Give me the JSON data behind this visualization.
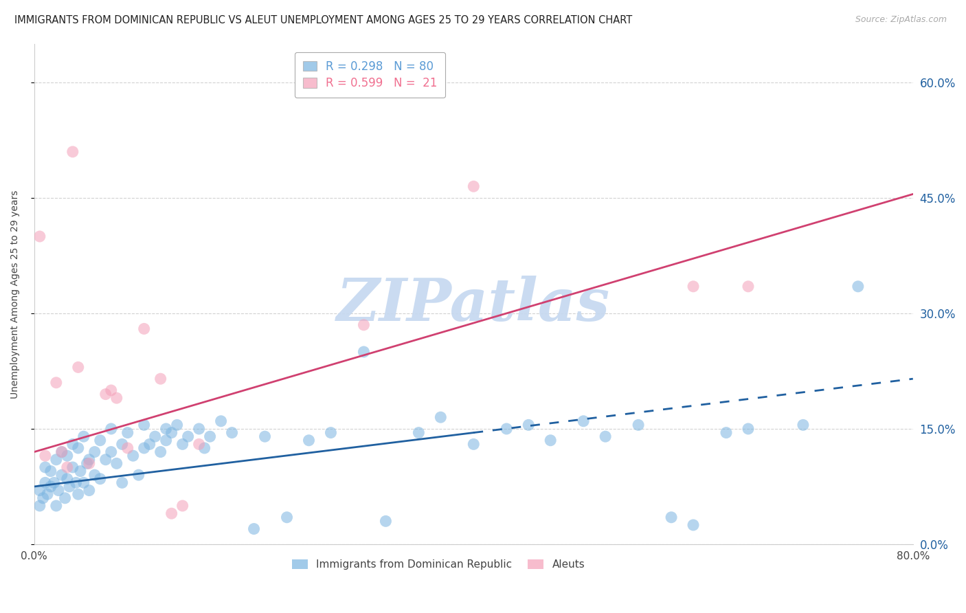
{
  "title": "IMMIGRANTS FROM DOMINICAN REPUBLIC VS ALEUT UNEMPLOYMENT AMONG AGES 25 TO 29 YEARS CORRELATION CHART",
  "source": "Source: ZipAtlas.com",
  "ylabel_label": "Unemployment Among Ages 25 to 29 years",
  "legend_entries": [
    {
      "label": "R = 0.298   N = 80",
      "color": "#5b9bd5"
    },
    {
      "label": "R = 0.599   N =  21",
      "color": "#f07090"
    }
  ],
  "blue_scatter_x": [
    0.5,
    0.5,
    0.8,
    1.0,
    1.0,
    1.2,
    1.5,
    1.5,
    1.8,
    2.0,
    2.0,
    2.2,
    2.5,
    2.5,
    2.8,
    3.0,
    3.0,
    3.2,
    3.5,
    3.5,
    3.8,
    4.0,
    4.0,
    4.2,
    4.5,
    4.5,
    4.8,
    5.0,
    5.0,
    5.5,
    5.5,
    6.0,
    6.0,
    6.5,
    7.0,
    7.0,
    7.5,
    8.0,
    8.0,
    8.5,
    9.0,
    9.5,
    10.0,
    10.0,
    10.5,
    11.0,
    11.5,
    12.0,
    12.0,
    12.5,
    13.0,
    13.5,
    14.0,
    15.0,
    15.5,
    16.0,
    17.0,
    18.0,
    20.0,
    21.0,
    23.0,
    25.0,
    27.0,
    30.0,
    32.0,
    35.0,
    37.0,
    40.0,
    43.0,
    45.0,
    47.0,
    50.0,
    52.0,
    55.0,
    58.0,
    60.0,
    63.0,
    65.0,
    70.0,
    75.0
  ],
  "blue_scatter_y": [
    5.0,
    7.0,
    6.0,
    8.0,
    10.0,
    6.5,
    7.5,
    9.5,
    8.0,
    5.0,
    11.0,
    7.0,
    9.0,
    12.0,
    6.0,
    8.5,
    11.5,
    7.5,
    10.0,
    13.0,
    8.0,
    6.5,
    12.5,
    9.5,
    8.0,
    14.0,
    10.5,
    11.0,
    7.0,
    12.0,
    9.0,
    13.5,
    8.5,
    11.0,
    12.0,
    15.0,
    10.5,
    13.0,
    8.0,
    14.5,
    11.5,
    9.0,
    12.5,
    15.5,
    13.0,
    14.0,
    12.0,
    13.5,
    15.0,
    14.5,
    15.5,
    13.0,
    14.0,
    15.0,
    12.5,
    14.0,
    16.0,
    14.5,
    2.0,
    14.0,
    3.5,
    13.5,
    14.5,
    25.0,
    3.0,
    14.5,
    16.5,
    13.0,
    15.0,
    15.5,
    13.5,
    16.0,
    14.0,
    15.5,
    3.5,
    2.5,
    14.5,
    15.0,
    15.5,
    33.5
  ],
  "pink_scatter_x": [
    0.5,
    1.0,
    2.0,
    2.5,
    3.0,
    3.5,
    4.0,
    5.0,
    6.5,
    7.0,
    7.5,
    8.5,
    10.0,
    11.5,
    12.5,
    13.5,
    15.0,
    30.0,
    40.0,
    60.0,
    65.0
  ],
  "pink_scatter_y": [
    40.0,
    11.5,
    21.0,
    12.0,
    10.0,
    51.0,
    23.0,
    10.5,
    19.5,
    20.0,
    19.0,
    12.5,
    28.0,
    21.5,
    4.0,
    5.0,
    13.0,
    28.5,
    46.5,
    33.5,
    33.5
  ],
  "blue_line_x0": 0,
  "blue_line_y0": 7.5,
  "blue_line_x1": 40,
  "blue_line_y1": 14.5,
  "blue_dash_x0": 40,
  "blue_dash_y0": 14.5,
  "blue_dash_x1": 80,
  "blue_dash_y1": 21.5,
  "pink_line_x0": 0,
  "pink_line_y0": 12.0,
  "pink_line_x1": 80,
  "pink_line_y1": 45.5,
  "xlim": [
    0,
    80
  ],
  "ylim": [
    0,
    65
  ],
  "yticks_pct": [
    0,
    15,
    30,
    45,
    60
  ],
  "xticks_pct": [
    0,
    80
  ],
  "bg_color": "#ffffff",
  "blue_color": "#7ab4e0",
  "pink_color": "#f4a0b8",
  "blue_line_color": "#2060a0",
  "pink_line_color": "#d04070",
  "grid_color": "#cccccc",
  "watermark_text": "ZIPatlas",
  "watermark_color": "#c5d8f0"
}
